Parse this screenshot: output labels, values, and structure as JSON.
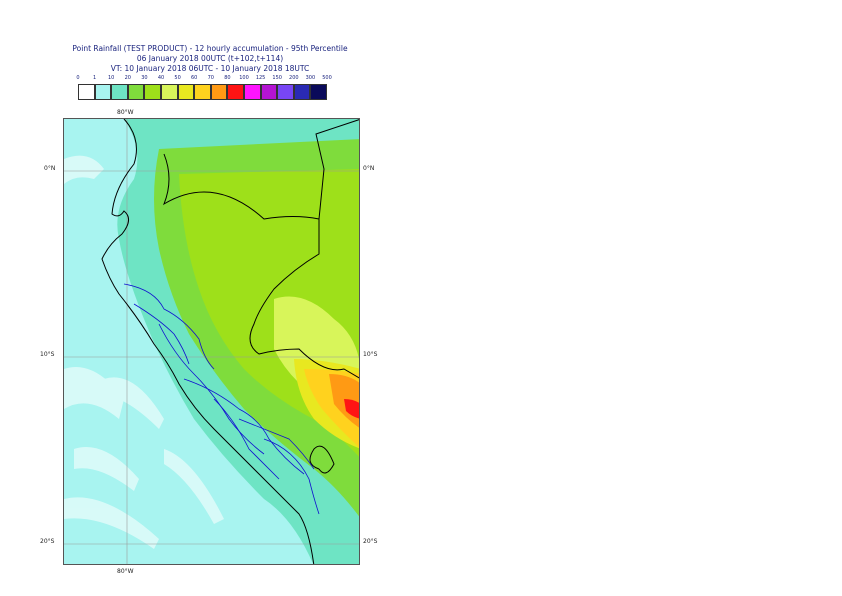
{
  "title": {
    "line1": "Point Rainfall (TEST PRODUCT) - 12 hourly accumulation - 95th Percentile",
    "line2": "06 January 2018 00UTC (t+102,t+114)",
    "line3": "VT: 10 January 2018 06UTC - 10 January 2018 18UTC"
  },
  "legend": {
    "labels": [
      "0",
      "1",
      "10",
      "20",
      "30",
      "40",
      "50",
      "60",
      "70",
      "80",
      "100",
      "125",
      "150",
      "200",
      "300",
      "500"
    ],
    "colors": [
      "#ffffff",
      "#a8f4f0",
      "#6ee4c4",
      "#7fdc3c",
      "#9ee01a",
      "#d8f55a",
      "#e8e820",
      "#ffd21e",
      "#ff9a14",
      "#ff1414",
      "#ff14ff",
      "#b414d2",
      "#7846f5",
      "#2a2ab4",
      "#0a0a5a"
    ]
  },
  "axes": {
    "lon_top": "80°W",
    "lon_bottom": "80°W",
    "lat_left": [
      "0°N",
      "10°S",
      "20°S"
    ],
    "lat_right": [
      "0°N",
      "10°S",
      "20°S"
    ]
  },
  "map": {
    "ocean_color": "#a8f4f0",
    "grid_color": "#9a9a9a",
    "border_color": "#000000",
    "region_border_color": "#1010d0"
  }
}
